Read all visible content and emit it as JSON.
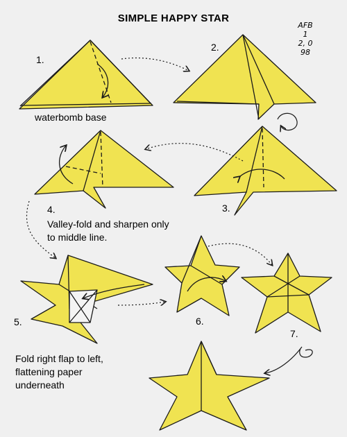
{
  "title": "SIMPLE HAPPY STAR",
  "initials": [
    "AFB",
    "1",
    "2, 0",
    "98"
  ],
  "steps": [
    "1.",
    "2.",
    "3.",
    "4.",
    "5.",
    "6.",
    "7."
  ],
  "captions": {
    "waterbomb": "waterbomb base",
    "step4_line1": "Valley-fold and sharpen only",
    "step4_line2": "to middle line.",
    "step5_line1": "Fold right flap to left,",
    "step5_line2": "flattening paper",
    "step5_line3": "underneath"
  },
  "colors": {
    "paper": "#f0e351",
    "outline": "#1a1a1a",
    "background": "#f0f0f0"
  }
}
